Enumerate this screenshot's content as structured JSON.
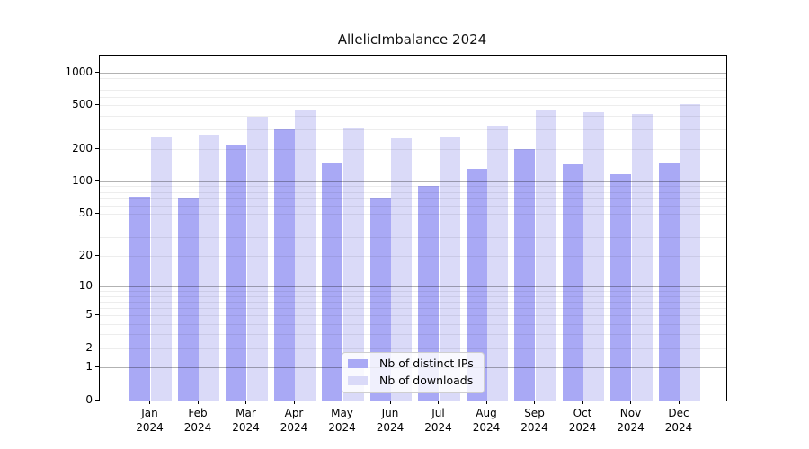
{
  "title": "AllelicImbalance 2024",
  "chart_data": {
    "type": "bar",
    "title": "AllelicImbalance 2024",
    "categories": [
      "Jan 2024",
      "Feb 2024",
      "Mar 2024",
      "Apr 2024",
      "May 2024",
      "Jun 2024",
      "Jul 2024",
      "Aug 2024",
      "Sep 2024",
      "Oct 2024",
      "Nov 2024",
      "Dec 2024"
    ],
    "series": [
      {
        "name": "Nb of distinct IPs",
        "color": "#a9a9f5",
        "values": [
          72,
          69,
          220,
          305,
          146,
          69,
          90,
          131,
          198,
          143,
          117,
          146
        ]
      },
      {
        "name": "Nb of downloads",
        "color": "#dadaf8",
        "values": [
          255,
          270,
          395,
          462,
          311,
          249,
          254,
          327,
          455,
          430,
          421,
          512
        ]
      }
    ],
    "xlabel": "",
    "ylabel": "",
    "y_ticks": [
      0,
      1,
      2,
      5,
      10,
      20,
      50,
      100,
      200,
      500,
      1000
    ],
    "y_scale": "log10(1+v)",
    "ylim": [
      0,
      1420
    ],
    "grid": {
      "major_at": [
        1,
        10,
        100,
        1000
      ],
      "minor_gridlines": true
    },
    "legend_position": "inside-bottom-center",
    "axis_color": "#000000"
  }
}
